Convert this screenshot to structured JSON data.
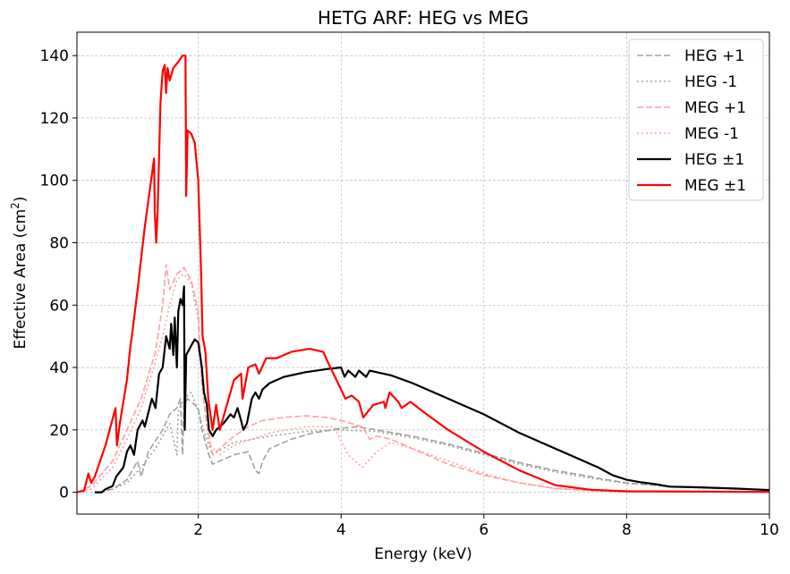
{
  "chart_data": {
    "type": "line",
    "title": "HETG ARF: HEG vs MEG",
    "xlabel": "Energy (keV)",
    "ylabel_main": "Effective Area (cm",
    "ylabel_sup": "2",
    "ylabel_end": ")",
    "xlim": [
      0.3,
      10
    ],
    "ylim": [
      -7,
      147.5
    ],
    "xticks": [
      2,
      4,
      6,
      8,
      10
    ],
    "yticks": [
      0,
      20,
      40,
      60,
      80,
      100,
      120,
      140
    ],
    "grid": true,
    "legend_placement": "top-right",
    "series": [
      {
        "name": "HEG +1",
        "color": "#a0a0a0",
        "style": "dashed",
        "width": 1.6,
        "points": [
          [
            0.6,
            0
          ],
          [
            0.8,
            1
          ],
          [
            1.0,
            4
          ],
          [
            1.15,
            10
          ],
          [
            1.2,
            5
          ],
          [
            1.3,
            13
          ],
          [
            1.5,
            20
          ],
          [
            1.6,
            25
          ],
          [
            1.7,
            27
          ],
          [
            1.75,
            30
          ],
          [
            1.78,
            12
          ],
          [
            1.8,
            28
          ],
          [
            1.85,
            30
          ],
          [
            2.0,
            27
          ],
          [
            2.05,
            20
          ],
          [
            2.15,
            12
          ],
          [
            2.2,
            9
          ],
          [
            2.3,
            10
          ],
          [
            2.5,
            12
          ],
          [
            2.7,
            13
          ],
          [
            2.8,
            7
          ],
          [
            2.85,
            6
          ],
          [
            2.9,
            10
          ],
          [
            3.0,
            14
          ],
          [
            3.3,
            17
          ],
          [
            3.6,
            19
          ],
          [
            4.0,
            20.5
          ],
          [
            4.2,
            21
          ],
          [
            4.5,
            20
          ],
          [
            5.0,
            18
          ],
          [
            5.5,
            15.5
          ],
          [
            6,
            12.5
          ],
          [
            6.5,
            9.5
          ],
          [
            7,
            7
          ],
          [
            7.5,
            5
          ],
          [
            7.6,
            4.5
          ],
          [
            8,
            3
          ],
          [
            8.5,
            2
          ],
          [
            9,
            1.5
          ],
          [
            10,
            0.8
          ]
        ]
      },
      {
        "name": "HEG -1",
        "color": "#a0a0a0",
        "style": "dotted",
        "width": 1.6,
        "points": [
          [
            0.6,
            0
          ],
          [
            0.8,
            1
          ],
          [
            1.0,
            3
          ],
          [
            1.2,
            8
          ],
          [
            1.4,
            14
          ],
          [
            1.6,
            22
          ],
          [
            1.7,
            12
          ],
          [
            1.72,
            26
          ],
          [
            1.8,
            30
          ],
          [
            1.9,
            32
          ],
          [
            2.0,
            26
          ],
          [
            2.1,
            18
          ],
          [
            2.2,
            12
          ],
          [
            2.5,
            16
          ],
          [
            3,
            18
          ],
          [
            3.5,
            19.5
          ],
          [
            4,
            20
          ],
          [
            4.5,
            19.5
          ],
          [
            5,
            17.5
          ],
          [
            5.5,
            15
          ],
          [
            6,
            12
          ],
          [
            6.5,
            9
          ],
          [
            7,
            6.5
          ],
          [
            7.5,
            4.5
          ],
          [
            8,
            2.8
          ],
          [
            9,
            1.4
          ],
          [
            10,
            0.7
          ]
        ]
      },
      {
        "name": "MEG +1",
        "color": "#ffa0a0",
        "style": "dashed",
        "width": 1.6,
        "points": [
          [
            0.3,
            0
          ],
          [
            0.5,
            2
          ],
          [
            0.8,
            10
          ],
          [
            1.0,
            20
          ],
          [
            1.2,
            30
          ],
          [
            1.4,
            45
          ],
          [
            1.5,
            60
          ],
          [
            1.55,
            73
          ],
          [
            1.6,
            65
          ],
          [
            1.7,
            70
          ],
          [
            1.8,
            72
          ],
          [
            1.9,
            68
          ],
          [
            2.0,
            58
          ],
          [
            2.05,
            35
          ],
          [
            2.1,
            25
          ],
          [
            2.2,
            12
          ],
          [
            2.3,
            14
          ],
          [
            2.5,
            18
          ],
          [
            2.7,
            21
          ],
          [
            2.9,
            23
          ],
          [
            3.2,
            24
          ],
          [
            3.5,
            24.5
          ],
          [
            3.8,
            24
          ],
          [
            4.0,
            23
          ],
          [
            4.3,
            21
          ],
          [
            4.4,
            17
          ],
          [
            4.5,
            18
          ],
          [
            4.7,
            17
          ],
          [
            4.9,
            15
          ],
          [
            5.0,
            14
          ],
          [
            5.5,
            9
          ],
          [
            6,
            5.5
          ],
          [
            6.5,
            3
          ],
          [
            7,
            1.2
          ],
          [
            7.5,
            0.5
          ],
          [
            8,
            0.2
          ],
          [
            10,
            0.05
          ]
        ]
      },
      {
        "name": "MEG -1",
        "color": "#ffa0a0",
        "style": "dotted",
        "width": 1.6,
        "points": [
          [
            0.3,
            0
          ],
          [
            0.5,
            1
          ],
          [
            0.8,
            8
          ],
          [
            1.0,
            17
          ],
          [
            1.2,
            27
          ],
          [
            1.4,
            42
          ],
          [
            1.5,
            50
          ],
          [
            1.6,
            60
          ],
          [
            1.7,
            68
          ],
          [
            1.8,
            70
          ],
          [
            1.9,
            67
          ],
          [
            2.0,
            55
          ],
          [
            2.05,
            35
          ],
          [
            2.15,
            15
          ],
          [
            2.3,
            12
          ],
          [
            2.5,
            15
          ],
          [
            3,
            19
          ],
          [
            3.5,
            21
          ],
          [
            3.9,
            21
          ],
          [
            4.1,
            12
          ],
          [
            4.3,
            8
          ],
          [
            4.5,
            13
          ],
          [
            4.7,
            16
          ],
          [
            5,
            14
          ],
          [
            5.5,
            10
          ],
          [
            6,
            6
          ],
          [
            6.5,
            3
          ],
          [
            7,
            1.2
          ],
          [
            8,
            0.2
          ],
          [
            10,
            0.05
          ]
        ]
      },
      {
        "name": "HEG ±1",
        "color": "#000000",
        "style": "solid",
        "width": 2.2,
        "points": [
          [
            0.55,
            0
          ],
          [
            0.65,
            0
          ],
          [
            0.7,
            1
          ],
          [
            0.8,
            2
          ],
          [
            0.85,
            5
          ],
          [
            0.95,
            8
          ],
          [
            1.0,
            13
          ],
          [
            1.05,
            15
          ],
          [
            1.1,
            12
          ],
          [
            1.15,
            20
          ],
          [
            1.22,
            23
          ],
          [
            1.25,
            21
          ],
          [
            1.35,
            30
          ],
          [
            1.4,
            27
          ],
          [
            1.45,
            38
          ],
          [
            1.5,
            40
          ],
          [
            1.55,
            50
          ],
          [
            1.6,
            46
          ],
          [
            1.62,
            54
          ],
          [
            1.65,
            44
          ],
          [
            1.67,
            56
          ],
          [
            1.7,
            40
          ],
          [
            1.72,
            58
          ],
          [
            1.75,
            62
          ],
          [
            1.78,
            60
          ],
          [
            1.8,
            66
          ],
          [
            1.81,
            20
          ],
          [
            1.83,
            44
          ],
          [
            1.9,
            47
          ],
          [
            1.95,
            49
          ],
          [
            2.0,
            48
          ],
          [
            2.05,
            40
          ],
          [
            2.08,
            32
          ],
          [
            2.12,
            28
          ],
          [
            2.15,
            20
          ],
          [
            2.2,
            18
          ],
          [
            2.25,
            20
          ],
          [
            2.35,
            22
          ],
          [
            2.45,
            25
          ],
          [
            2.5,
            24
          ],
          [
            2.55,
            27
          ],
          [
            2.6,
            23
          ],
          [
            2.63,
            20
          ],
          [
            2.68,
            22
          ],
          [
            2.75,
            30
          ],
          [
            2.8,
            32
          ],
          [
            2.85,
            30
          ],
          [
            2.9,
            33
          ],
          [
            3.0,
            35
          ],
          [
            3.2,
            37
          ],
          [
            3.5,
            38.5
          ],
          [
            3.8,
            39.5
          ],
          [
            4.0,
            40
          ],
          [
            4.05,
            37
          ],
          [
            4.1,
            39
          ],
          [
            4.2,
            37
          ],
          [
            4.25,
            39
          ],
          [
            4.35,
            37
          ],
          [
            4.4,
            39
          ],
          [
            4.5,
            38.5
          ],
          [
            4.7,
            37.5
          ],
          [
            5.0,
            35
          ],
          [
            5.5,
            30
          ],
          [
            6.0,
            25
          ],
          [
            6.5,
            19
          ],
          [
            7.0,
            14
          ],
          [
            7.5,
            9
          ],
          [
            7.6,
            8
          ],
          [
            7.8,
            5.5
          ],
          [
            8.0,
            4
          ],
          [
            8.2,
            3.2
          ],
          [
            8.4,
            2.6
          ],
          [
            8.6,
            1.8
          ],
          [
            9,
            1.6
          ],
          [
            9.5,
            1.2
          ],
          [
            10,
            0.7
          ]
        ]
      },
      {
        "name": "MEG ±1",
        "color": "#ff0000",
        "style": "solid",
        "width": 2.2,
        "points": [
          [
            0.3,
            0
          ],
          [
            0.4,
            0.5
          ],
          [
            0.46,
            6
          ],
          [
            0.5,
            3
          ],
          [
            0.55,
            5
          ],
          [
            0.7,
            15
          ],
          [
            0.84,
            27
          ],
          [
            0.86,
            15
          ],
          [
            0.9,
            22
          ],
          [
            1.0,
            36
          ],
          [
            1.05,
            47
          ],
          [
            1.07,
            50
          ],
          [
            1.15,
            65
          ],
          [
            1.25,
            85
          ],
          [
            1.38,
            107
          ],
          [
            1.39,
            90
          ],
          [
            1.41,
            80
          ],
          [
            1.43,
            90
          ],
          [
            1.47,
            125
          ],
          [
            1.5,
            135
          ],
          [
            1.53,
            137
          ],
          [
            1.55,
            128
          ],
          [
            1.57,
            136
          ],
          [
            1.6,
            132
          ],
          [
            1.65,
            136
          ],
          [
            1.72,
            138
          ],
          [
            1.78,
            140
          ],
          [
            1.82,
            140
          ],
          [
            1.83,
            95
          ],
          [
            1.85,
            116
          ],
          [
            1.9,
            115
          ],
          [
            1.95,
            112
          ],
          [
            2.0,
            100
          ],
          [
            2.04,
            70
          ],
          [
            2.06,
            50
          ],
          [
            2.1,
            45
          ],
          [
            2.14,
            30
          ],
          [
            2.2,
            20
          ],
          [
            2.25,
            28
          ],
          [
            2.3,
            20
          ],
          [
            2.4,
            28
          ],
          [
            2.5,
            36
          ],
          [
            2.6,
            38
          ],
          [
            2.62,
            30
          ],
          [
            2.7,
            40
          ],
          [
            2.8,
            41
          ],
          [
            2.85,
            38
          ],
          [
            2.95,
            43
          ],
          [
            3.1,
            43
          ],
          [
            3.3,
            45
          ],
          [
            3.56,
            46
          ],
          [
            3.75,
            45
          ],
          [
            3.85,
            40
          ],
          [
            4.0,
            33
          ],
          [
            4.06,
            30
          ],
          [
            4.15,
            31
          ],
          [
            4.25,
            29
          ],
          [
            4.31,
            24
          ],
          [
            4.45,
            28
          ],
          [
            4.6,
            29
          ],
          [
            4.62,
            27
          ],
          [
            4.68,
            32
          ],
          [
            4.8,
            29
          ],
          [
            4.85,
            27
          ],
          [
            4.97,
            29
          ],
          [
            5.2,
            25
          ],
          [
            5.5,
            20
          ],
          [
            6.0,
            13
          ],
          [
            6.5,
            7
          ],
          [
            7.0,
            2.3
          ],
          [
            7.5,
            0.8
          ],
          [
            8,
            0.3
          ],
          [
            10,
            0.1
          ]
        ]
      }
    ]
  }
}
